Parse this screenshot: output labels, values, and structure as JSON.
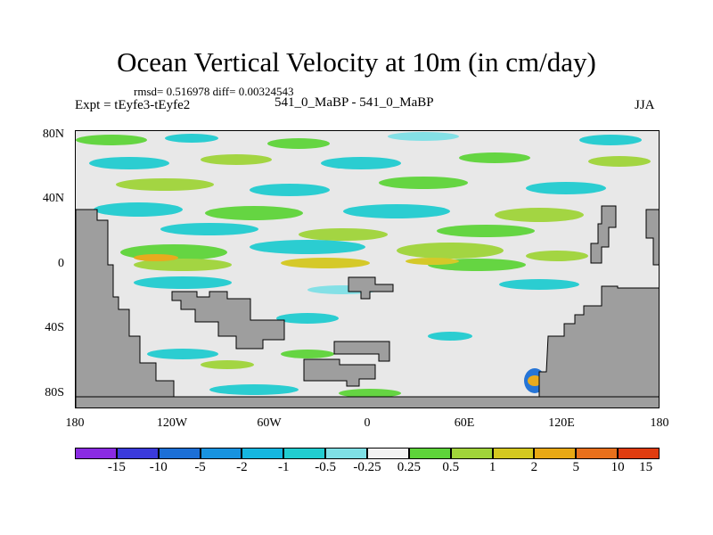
{
  "title": "Ocean Vertical Velocity at 10m (in cm/day)",
  "stats": "rmsd= 0.516978 diff= 0.00324543",
  "expt": "Expt = tEyfe3-tEyfe2",
  "runs": "541_0_MaBP - 541_0_MaBP",
  "season": "JJA",
  "lat_labels": [
    "80N",
    "40N",
    "0",
    "40S",
    "80S"
  ],
  "lon_labels": [
    "180",
    "120W",
    "60W",
    "0",
    "60E",
    "120E",
    "180"
  ],
  "colorbar": {
    "labels": [
      "-15",
      "-10",
      "-5",
      "-2",
      "-1",
      "-0.5",
      "-0.25",
      "0.25",
      "0.5",
      "1",
      "2",
      "5",
      "10",
      "15"
    ],
    "colors": [
      "#8a2be2",
      "#3b3bdb",
      "#1c6fd6",
      "#1893e0",
      "#15b6e0",
      "#21ccd0",
      "#7fe0e6",
      "#f2f2f2",
      "#5ed43a",
      "#a0d43a",
      "#d4c81f",
      "#e8a814",
      "#e8701c",
      "#e03c10"
    ]
  },
  "legend_icons": {
    "land": "land-mask",
    "ocean": "ocean-field"
  }
}
